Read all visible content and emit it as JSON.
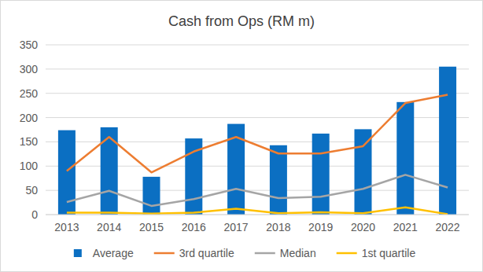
{
  "chart_data": {
    "type": "bar",
    "title": "Cash from Ops (RM m)",
    "categories": [
      "2013",
      "2014",
      "2015",
      "2016",
      "2017",
      "2018",
      "2019",
      "2020",
      "2021",
      "2022"
    ],
    "series": [
      {
        "name": "Average",
        "type": "bar",
        "color": "#0B6FC2",
        "values": [
          174,
          180,
          78,
          157,
          187,
          143,
          167,
          176,
          232,
          305
        ]
      },
      {
        "name": "3rd quartile",
        "type": "line",
        "color": "#ED7D31",
        "values": [
          90,
          160,
          87,
          130,
          160,
          126,
          126,
          141,
          230,
          247
        ]
      },
      {
        "name": "Median",
        "type": "line",
        "color": "#A5A5A5",
        "values": [
          26,
          49,
          18,
          32,
          53,
          34,
          37,
          53,
          82,
          56
        ]
      },
      {
        "name": "1st quartile",
        "type": "line",
        "color": "#FFC000",
        "values": [
          4,
          4,
          2,
          4,
          12,
          3,
          5,
          3,
          15,
          1
        ]
      }
    ],
    "ylim": [
      0,
      350
    ],
    "yticks": [
      0,
      50,
      100,
      150,
      200,
      250,
      300,
      350
    ],
    "grid": true,
    "legend": "bottom"
  }
}
